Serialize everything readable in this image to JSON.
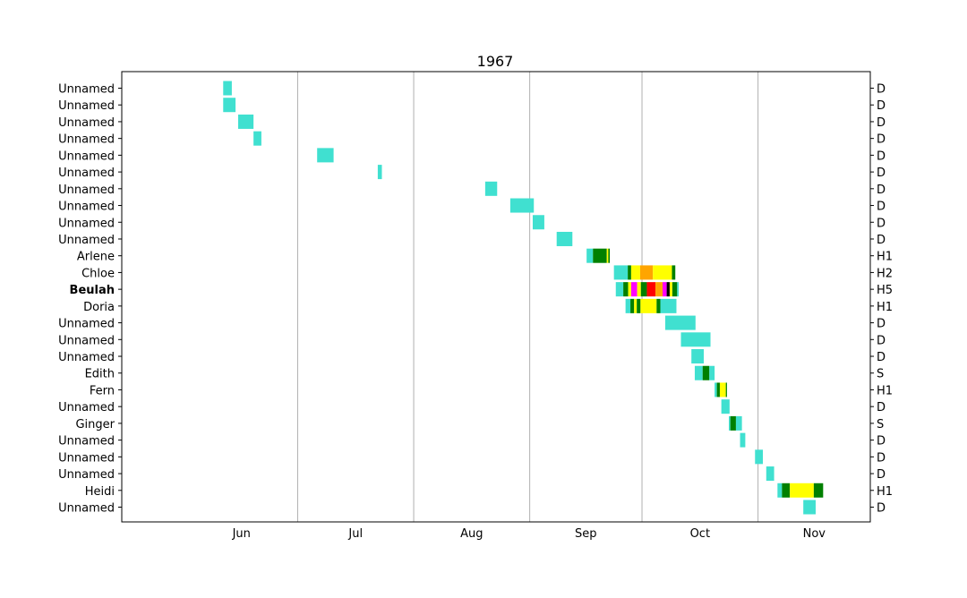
{
  "chart_data": {
    "type": "timeline",
    "title": "1967",
    "x_axis": {
      "ticks": [
        "Jun",
        "Jul",
        "Aug",
        "Sep",
        "Oct",
        "Nov"
      ],
      "month_boundaries_day_of_year": [
        152,
        182,
        213,
        244,
        274,
        305,
        335
      ]
    },
    "category_colors": {
      "D": "#40e0d0",
      "S": "#008000",
      "H1": "#ffff00",
      "H2": "#ffa500",
      "H3": "#ff0000",
      "H4": "#ff00ff",
      "H5": "#000000"
    },
    "storms": [
      {
        "name": "Unnamed",
        "max": "D",
        "segments": [
          [
            "D",
            162.1,
            164.4
          ]
        ]
      },
      {
        "name": "Unnamed",
        "max": "D",
        "segments": [
          [
            "D",
            162.1,
            165.4
          ]
        ]
      },
      {
        "name": "Unnamed",
        "max": "D",
        "segments": [
          [
            "D",
            166.1,
            170.2
          ]
        ]
      },
      {
        "name": "Unnamed",
        "max": "D",
        "segments": [
          [
            "D",
            170.2,
            172.3
          ]
        ]
      },
      {
        "name": "Unnamed",
        "max": "D",
        "segments": [
          [
            "D",
            187.2,
            191.6
          ]
        ]
      },
      {
        "name": "Unnamed",
        "max": "D",
        "segments": [
          [
            "D",
            203.4,
            204.5
          ]
        ]
      },
      {
        "name": "Unnamed",
        "max": "D",
        "segments": [
          [
            "D",
            232.1,
            235.3
          ]
        ]
      },
      {
        "name": "Unnamed",
        "max": "D",
        "segments": [
          [
            "D",
            238.8,
            245.1
          ]
        ]
      },
      {
        "name": "Unnamed",
        "max": "D",
        "segments": [
          [
            "D",
            244.8,
            247.9
          ]
        ]
      },
      {
        "name": "Unnamed",
        "max": "D",
        "segments": [
          [
            "D",
            251.2,
            255.4
          ]
        ]
      },
      {
        "name": "Arlene",
        "max": "H1",
        "segments": [
          [
            "D",
            259.2,
            260.9
          ],
          [
            "S",
            260.9,
            264.6
          ],
          [
            "H1",
            264.6,
            265.0
          ],
          [
            "S",
            265.0,
            265.4
          ]
        ]
      },
      {
        "name": "Chloe",
        "max": "H2",
        "segments": [
          [
            "D",
            266.5,
            270.2
          ],
          [
            "S",
            270.2,
            271.1
          ],
          [
            "H1",
            271.1,
            273.5
          ],
          [
            "H2",
            273.5,
            276.9
          ],
          [
            "H1",
            276.9,
            282.0
          ],
          [
            "S",
            282.0,
            282.9
          ]
        ]
      },
      {
        "name": "Beulah",
        "max": "H5",
        "bold": true,
        "segments": [
          [
            "D",
            267.0,
            269.0
          ],
          [
            "S",
            269.0,
            270.3
          ],
          [
            "H1",
            270.3,
            271.1
          ],
          [
            "H4",
            271.1,
            272.7
          ],
          [
            "H1",
            272.7,
            273.7
          ],
          [
            "S",
            273.7,
            275.3
          ],
          [
            "H3",
            275.3,
            277.6
          ],
          [
            "H2",
            277.6,
            279.5
          ],
          [
            "H4",
            279.5,
            280.6
          ],
          [
            "H5",
            280.6,
            281.4
          ],
          [
            "H1",
            281.4,
            282.1
          ],
          [
            "S",
            282.1,
            283.4
          ],
          [
            "D",
            283.4,
            283.8
          ]
        ]
      },
      {
        "name": "Doria",
        "max": "H1",
        "segments": [
          [
            "D",
            269.6,
            270.9
          ],
          [
            "S",
            270.9,
            271.9
          ],
          [
            "H1",
            271.9,
            272.6
          ],
          [
            "S",
            272.6,
            273.6
          ],
          [
            "H1",
            273.6,
            277.9
          ],
          [
            "S",
            277.9,
            278.9
          ],
          [
            "D",
            278.9,
            283.2
          ]
        ]
      },
      {
        "name": "Unnamed",
        "max": "D",
        "segments": [
          [
            "D",
            280.2,
            288.3
          ]
        ]
      },
      {
        "name": "Unnamed",
        "max": "D",
        "segments": [
          [
            "D",
            284.4,
            292.3
          ]
        ]
      },
      {
        "name": "Unnamed",
        "max": "D",
        "segments": [
          [
            "D",
            287.2,
            290.5
          ]
        ]
      },
      {
        "name": "Edith",
        "max": "S",
        "segments": [
          [
            "D",
            288.1,
            290.2
          ],
          [
            "S",
            290.2,
            292.0
          ],
          [
            "D",
            292.0,
            293.4
          ]
        ]
      },
      {
        "name": "Fern",
        "max": "H1",
        "segments": [
          [
            "D",
            293.4,
            294.0
          ],
          [
            "S",
            294.0,
            294.8
          ],
          [
            "H1",
            294.8,
            296.4
          ],
          [
            "S",
            296.4,
            296.7
          ]
        ]
      },
      {
        "name": "Unnamed",
        "max": "D",
        "segments": [
          [
            "D",
            295.2,
            297.4
          ]
        ]
      },
      {
        "name": "Ginger",
        "max": "S",
        "segments": [
          [
            "D",
            297.2,
            297.6
          ],
          [
            "S",
            297.6,
            299.1
          ],
          [
            "D",
            299.1,
            300.7
          ]
        ]
      },
      {
        "name": "Unnamed",
        "max": "D",
        "segments": [
          [
            "D",
            300.2,
            301.6
          ]
        ]
      },
      {
        "name": "Unnamed",
        "max": "D",
        "segments": [
          [
            "D",
            304.2,
            306.3
          ]
        ]
      },
      {
        "name": "Unnamed",
        "max": "D",
        "segments": [
          [
            "D",
            307.2,
            309.3
          ]
        ]
      },
      {
        "name": "Heidi",
        "max": "H1",
        "segments": [
          [
            "D",
            310.2,
            311.4
          ],
          [
            "S",
            311.4,
            313.5
          ],
          [
            "H1",
            313.5,
            319.9
          ],
          [
            "S",
            319.9,
            322.4
          ]
        ]
      },
      {
        "name": "Unnamed",
        "max": "D",
        "segments": [
          [
            "D",
            317.1,
            320.4
          ]
        ]
      }
    ]
  }
}
